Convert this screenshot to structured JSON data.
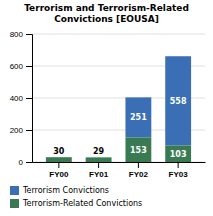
{
  "chart_data": {
    "type": "bar",
    "stacked": true,
    "title": "Terrorism and Terrorism-Related\nConvictions [EOUSA]",
    "categories": [
      "FY00",
      "FY01",
      "FY02",
      "FY03"
    ],
    "series": [
      {
        "name": "Terrorism Convictions",
        "color": "#3a6eb5",
        "values": [
          0,
          0,
          251,
          558
        ],
        "value_labels": [
          null,
          null,
          "251",
          "558"
        ]
      },
      {
        "name": "Terrorism-Related Convictions",
        "color": "#3a7a52",
        "values": [
          30,
          29,
          153,
          103
        ]
      }
    ],
    "ylim": [
      0,
      800
    ],
    "yticks": [
      0,
      200,
      400,
      600,
      800
    ],
    "grid": true,
    "data_labels": true
  }
}
